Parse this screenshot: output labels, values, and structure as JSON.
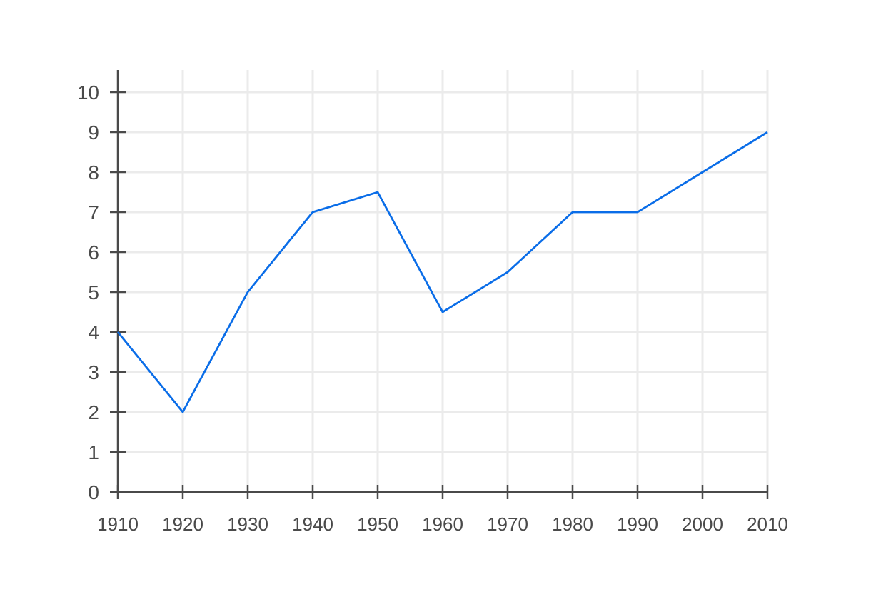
{
  "chart_data": {
    "type": "line",
    "title": "",
    "xlabel": "",
    "ylabel": "",
    "x": [
      1910,
      1920,
      1930,
      1940,
      1950,
      1960,
      1970,
      1980,
      1990,
      2000,
      2010
    ],
    "series": [
      {
        "values": [
          4,
          2,
          5,
          7,
          7.5,
          4.5,
          5.5,
          7,
          7,
          8,
          9
        ],
        "color": "#0a6de8"
      }
    ],
    "xlim": [
      1910,
      2010
    ],
    "ylim": [
      0,
      10
    ],
    "x_ticks": [
      "1910",
      "1920",
      "1930",
      "1940",
      "1950",
      "1960",
      "1970",
      "1980",
      "1990",
      "2000",
      "2010"
    ],
    "y_ticks": [
      "0",
      "1",
      "2",
      "3",
      "4",
      "5",
      "6",
      "7",
      "8",
      "9",
      "10"
    ],
    "grid": true,
    "colors": {
      "grid": "#ebebeb",
      "axis": "#4a4a4a",
      "text": "#4a4a4a"
    }
  }
}
